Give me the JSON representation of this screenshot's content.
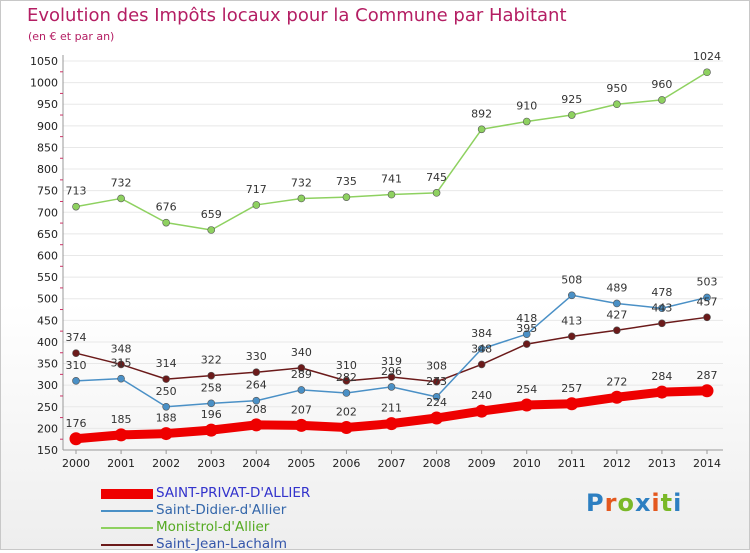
{
  "header": {
    "title": "Evolution des Impôts locaux pour la Commune par Habitant",
    "subtitle": "(en € et par an)"
  },
  "logo": {
    "text": "Proxiti",
    "letter_colors": [
      "#2d7fc1",
      "#e4581e",
      "#7ab828",
      "#2d7fc1",
      "#e4581e",
      "#7ab828",
      "#2d7fc1"
    ]
  },
  "colors": {
    "title": "#b41e63",
    "axis": "#999999",
    "grid": "#e8e8e8"
  },
  "chart_data": {
    "type": "line",
    "x": [
      2000,
      2001,
      2002,
      2003,
      2004,
      2005,
      2006,
      2007,
      2008,
      2009,
      2010,
      2011,
      2012,
      2013,
      2014
    ],
    "ylim": [
      150,
      1050
    ],
    "yticks": [
      150,
      200,
      250,
      300,
      350,
      400,
      450,
      500,
      550,
      600,
      650,
      700,
      750,
      800,
      850,
      900,
      950,
      1000,
      1050
    ],
    "grid": true,
    "legend_position": "bottom-left",
    "series": [
      {
        "name": "SAINT-PRIVAT-D'ALLIER",
        "color": "#ee0000",
        "label_color": "#3333cc",
        "values": [
          176,
          185,
          188,
          196,
          208,
          207,
          202,
          211,
          224,
          240,
          254,
          257,
          272,
          284,
          287
        ]
      },
      {
        "name": "Saint-Didier-d'Allier",
        "color": "#4a90c6",
        "label_color": "#3366aa",
        "values": [
          310,
          315,
          250,
          258,
          264,
          289,
          282,
          296,
          273,
          384,
          418,
          508,
          489,
          478,
          503
        ]
      },
      {
        "name": "Monistrol-d'Allier",
        "color": "#8ed160",
        "label_color": "#55aa22",
        "values": [
          713,
          732,
          676,
          659,
          717,
          732,
          735,
          741,
          745,
          892,
          910,
          925,
          950,
          960,
          1024
        ]
      },
      {
        "name": "Saint-Jean-Lachalm",
        "color": "#6b1a1a",
        "label_color": "#3355aa",
        "values": [
          374,
          348,
          314,
          322,
          330,
          340,
          310,
          319,
          308,
          348,
          395,
          413,
          427,
          443,
          457
        ]
      }
    ]
  }
}
